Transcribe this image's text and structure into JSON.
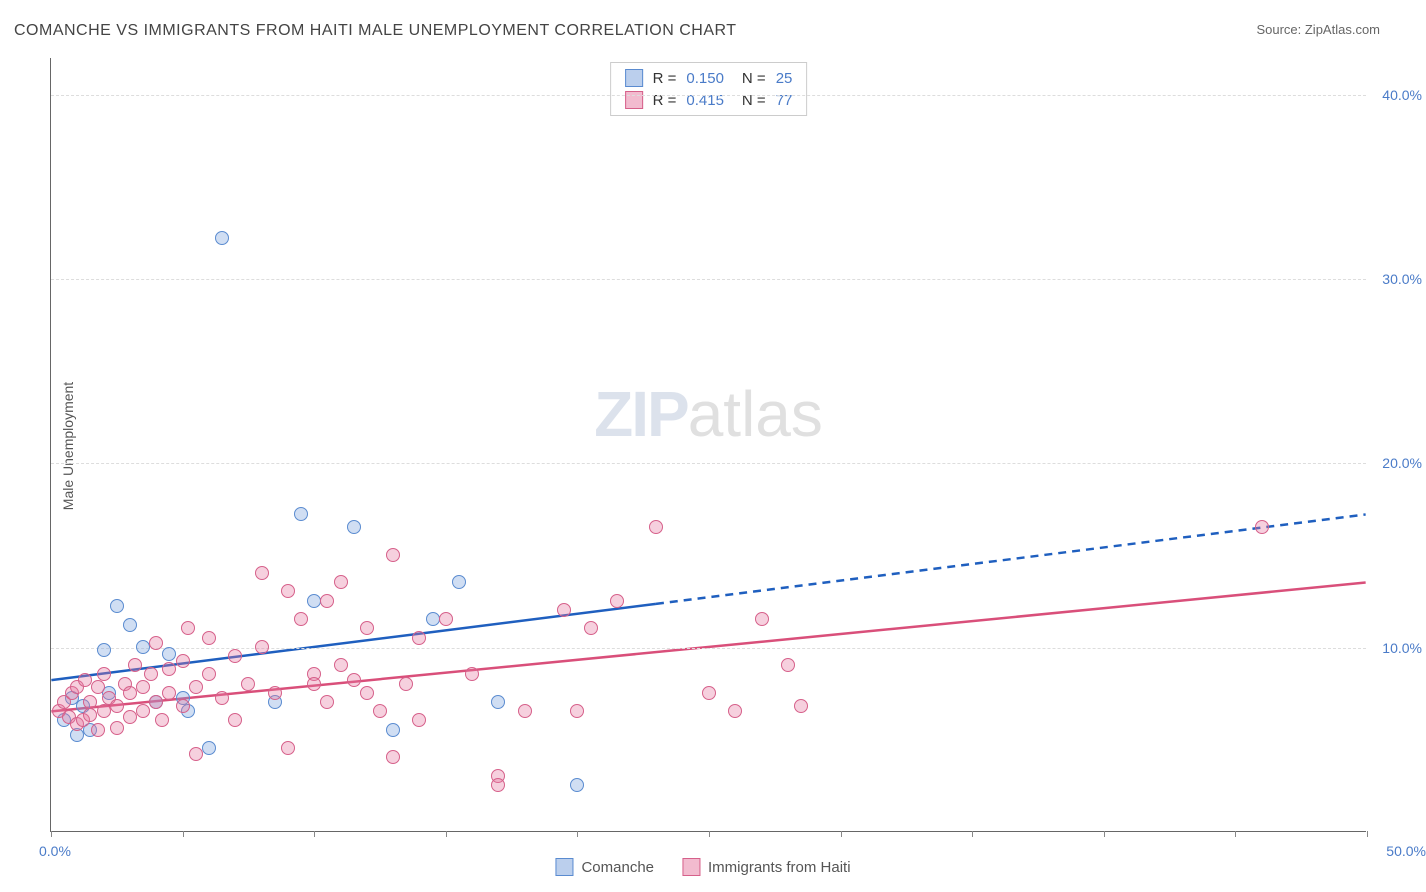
{
  "title": "COMANCHE VS IMMIGRANTS FROM HAITI MALE UNEMPLOYMENT CORRELATION CHART",
  "source": "Source: ZipAtlas.com",
  "ylabel": "Male Unemployment",
  "watermark_zip": "ZIP",
  "watermark_atlas": "atlas",
  "chart": {
    "type": "scatter",
    "xlim": [
      0,
      50
    ],
    "ylim": [
      0,
      42
    ],
    "y_ticks": [
      10,
      20,
      30,
      40
    ],
    "y_tick_labels": [
      "10.0%",
      "20.0%",
      "30.0%",
      "40.0%"
    ],
    "x_tick_positions": [
      0,
      5,
      10,
      15,
      20,
      25,
      30,
      35,
      40,
      45,
      50
    ],
    "x_label_min": "0.0%",
    "x_label_max": "50.0%",
    "background": "#ffffff",
    "grid_color": "#dddddd",
    "axis_color": "#666666",
    "tick_label_color": "#4a7bc8",
    "marker_size": 14,
    "marker_stroke": 1.5,
    "series": [
      {
        "name": "Comanche",
        "fill": "rgba(120,160,220,0.35)",
        "stroke": "#5a8bd0",
        "R": "0.150",
        "N": "25",
        "trend": {
          "y_at_x0": 8.2,
          "y_at_xmax": 17.2,
          "solid_to_x": 23,
          "color": "#1f5fbf",
          "width": 2.5
        },
        "points": [
          [
            0.5,
            6.0
          ],
          [
            0.8,
            7.2
          ],
          [
            1.0,
            5.2
          ],
          [
            1.2,
            6.8
          ],
          [
            1.5,
            5.5
          ],
          [
            2.0,
            9.8
          ],
          [
            2.2,
            7.5
          ],
          [
            2.5,
            12.2
          ],
          [
            3.0,
            11.2
          ],
          [
            3.5,
            10.0
          ],
          [
            4.0,
            7.0
          ],
          [
            4.5,
            9.6
          ],
          [
            5.0,
            7.2
          ],
          [
            5.2,
            6.5
          ],
          [
            6.5,
            32.2
          ],
          [
            8.5,
            7.0
          ],
          [
            9.5,
            17.2
          ],
          [
            10.0,
            12.5
          ],
          [
            11.5,
            16.5
          ],
          [
            13.0,
            5.5
          ],
          [
            14.5,
            11.5
          ],
          [
            15.5,
            13.5
          ],
          [
            17.0,
            7.0
          ],
          [
            20.0,
            2.5
          ],
          [
            6.0,
            4.5
          ]
        ]
      },
      {
        "name": "Immigrants from Haiti",
        "fill": "rgba(230,120,160,0.35)",
        "stroke": "#d6608a",
        "R": "0.415",
        "N": "77",
        "trend": {
          "y_at_x0": 6.5,
          "y_at_xmax": 13.5,
          "solid_to_x": 50,
          "color": "#d94f7a",
          "width": 2.5
        },
        "points": [
          [
            0.3,
            6.5
          ],
          [
            0.5,
            7.0
          ],
          [
            0.7,
            6.2
          ],
          [
            0.8,
            7.5
          ],
          [
            1.0,
            5.8
          ],
          [
            1.0,
            7.8
          ],
          [
            1.2,
            6.0
          ],
          [
            1.3,
            8.2
          ],
          [
            1.5,
            7.0
          ],
          [
            1.5,
            6.3
          ],
          [
            1.8,
            5.5
          ],
          [
            1.8,
            7.8
          ],
          [
            2.0,
            6.5
          ],
          [
            2.0,
            8.5
          ],
          [
            2.2,
            7.2
          ],
          [
            2.5,
            6.8
          ],
          [
            2.5,
            5.6
          ],
          [
            2.8,
            8.0
          ],
          [
            3.0,
            7.5
          ],
          [
            3.0,
            6.2
          ],
          [
            3.2,
            9.0
          ],
          [
            3.5,
            7.8
          ],
          [
            3.5,
            6.5
          ],
          [
            3.8,
            8.5
          ],
          [
            4.0,
            7.0
          ],
          [
            4.0,
            10.2
          ],
          [
            4.2,
            6.0
          ],
          [
            4.5,
            8.8
          ],
          [
            4.5,
            7.5
          ],
          [
            5.0,
            9.2
          ],
          [
            5.0,
            6.8
          ],
          [
            5.2,
            11.0
          ],
          [
            5.5,
            7.8
          ],
          [
            5.5,
            4.2
          ],
          [
            6.0,
            8.5
          ],
          [
            6.0,
            10.5
          ],
          [
            6.5,
            7.2
          ],
          [
            7.0,
            9.5
          ],
          [
            7.0,
            6.0
          ],
          [
            7.5,
            8.0
          ],
          [
            8.0,
            14.0
          ],
          [
            8.0,
            10.0
          ],
          [
            8.5,
            7.5
          ],
          [
            9.0,
            13.0
          ],
          [
            9.0,
            4.5
          ],
          [
            9.5,
            11.5
          ],
          [
            10.0,
            8.5
          ],
          [
            10.0,
            8.0
          ],
          [
            10.5,
            12.5
          ],
          [
            10.5,
            7.0
          ],
          [
            11.0,
            9.0
          ],
          [
            11.0,
            13.5
          ],
          [
            11.5,
            8.2
          ],
          [
            12.0,
            7.5
          ],
          [
            12.0,
            11.0
          ],
          [
            12.5,
            6.5
          ],
          [
            13.0,
            15.0
          ],
          [
            13.0,
            4.0
          ],
          [
            13.5,
            8.0
          ],
          [
            14.0,
            10.5
          ],
          [
            14.0,
            6.0
          ],
          [
            15.0,
            11.5
          ],
          [
            16.0,
            8.5
          ],
          [
            17.0,
            3.0
          ],
          [
            17.0,
            2.5
          ],
          [
            18.0,
            6.5
          ],
          [
            19.5,
            12.0
          ],
          [
            20.0,
            6.5
          ],
          [
            20.5,
            11.0
          ],
          [
            21.5,
            12.5
          ],
          [
            23.0,
            16.5
          ],
          [
            25.0,
            7.5
          ],
          [
            26.0,
            6.5
          ],
          [
            27.0,
            11.5
          ],
          [
            28.0,
            9.0
          ],
          [
            28.5,
            6.8
          ],
          [
            46.0,
            16.5
          ]
        ]
      }
    ]
  },
  "legend_top": {
    "rows": [
      {
        "swatch_fill": "rgba(120,160,220,0.5)",
        "swatch_stroke": "#5a8bd0",
        "R_label": "R =",
        "R_val": "0.150",
        "N_label": "N =",
        "N_val": "25"
      },
      {
        "swatch_fill": "rgba(230,120,160,0.5)",
        "swatch_stroke": "#d6608a",
        "R_label": "R =",
        "R_val": "0.415",
        "N_label": "N =",
        "N_val": "77"
      }
    ]
  },
  "legend_bottom": {
    "items": [
      {
        "swatch_fill": "rgba(120,160,220,0.5)",
        "swatch_stroke": "#5a8bd0",
        "label": "Comanche"
      },
      {
        "swatch_fill": "rgba(230,120,160,0.5)",
        "swatch_stroke": "#d6608a",
        "label": "Immigrants from Haiti"
      }
    ]
  }
}
